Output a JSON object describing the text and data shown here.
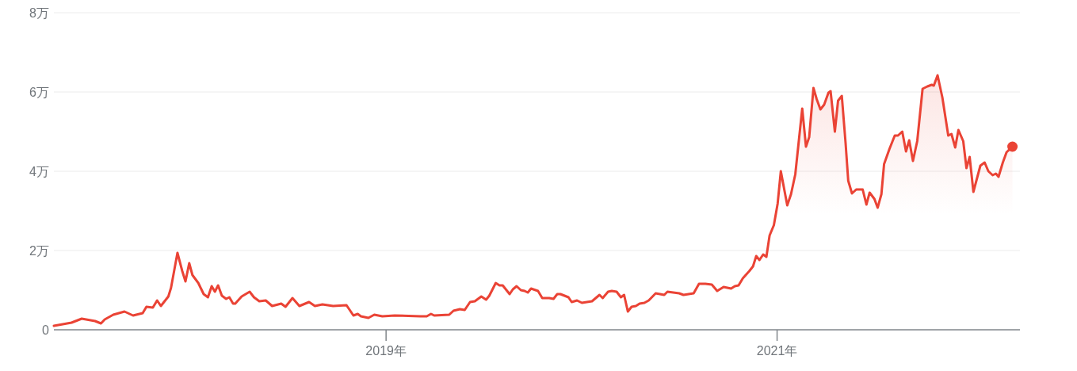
{
  "chart_data": {
    "type": "area",
    "color": "#ea4335",
    "grid": "y",
    "xlim": [
      "2017-04-20",
      "2022-03-31"
    ],
    "xticks": [
      {
        "value": "2019-01-01",
        "label": "2019年"
      },
      {
        "value": "2021-01-01",
        "label": "2021年"
      }
    ],
    "ylim": [
      0,
      8
    ],
    "yticks": [
      0,
      {
        "value": 2,
        "label": "2万"
      },
      {
        "value": 4,
        "label": "4万"
      },
      {
        "value": 6,
        "label": "6万"
      },
      {
        "value": 8,
        "label": "8万"
      }
    ],
    "x": [
      "2017-04-20",
      "2017-05-23",
      "2017-06-11",
      "2017-07-06",
      "2017-07-17",
      "2017-07-24",
      "2017-08-09",
      "2017-08-30",
      "2017-09-15",
      "2017-10-03",
      "2017-10-10",
      "2017-10-22",
      "2017-10-30",
      "2017-11-06",
      "2017-11-20",
      "2017-11-25",
      "2017-12-07",
      "2017-12-16",
      "2017-12-22",
      "2017-12-29",
      "2018-01-04",
      "2018-01-15",
      "2018-01-25",
      "2018-02-02",
      "2018-02-09",
      "2018-02-15",
      "2018-02-21",
      "2018-02-28",
      "2018-03-08",
      "2018-03-14",
      "2018-03-21",
      "2018-03-25",
      "2018-04-06",
      "2018-04-21",
      "2018-04-29",
      "2018-05-09",
      "2018-05-21",
      "2018-06-02",
      "2018-06-19",
      "2018-06-27",
      "2018-07-10",
      "2018-07-23",
      "2018-08-10",
      "2018-08-21",
      "2018-09-04",
      "2018-09-24",
      "2018-10-19",
      "2018-10-23",
      "2018-11-01",
      "2018-11-09",
      "2018-11-15",
      "2018-11-29",
      "2018-12-10",
      "2018-12-25",
      "2019-01-17",
      "2019-03-06",
      "2019-03-18",
      "2019-03-26",
      "2019-04-01",
      "2019-04-29",
      "2019-05-07",
      "2019-05-19",
      "2019-05-28",
      "2019-06-07",
      "2019-06-16",
      "2019-06-28",
      "2019-07-07",
      "2019-07-13",
      "2019-07-25",
      "2019-08-01",
      "2019-08-07",
      "2019-08-20",
      "2019-08-26",
      "2019-09-02",
      "2019-09-10",
      "2019-09-17",
      "2019-09-23",
      "2019-09-29",
      "2019-10-12",
      "2019-10-20",
      "2019-11-02",
      "2019-11-10",
      "2019-11-17",
      "2019-11-23",
      "2019-12-08",
      "2019-12-14",
      "2019-12-24",
      "2020-01-02",
      "2020-01-21",
      "2020-02-04",
      "2020-02-10",
      "2020-02-20",
      "2020-02-27",
      "2020-03-07",
      "2020-03-15",
      "2020-03-21",
      "2020-03-28",
      "2020-04-04",
      "2020-04-12",
      "2020-04-19",
      "2020-04-28",
      "2020-05-06",
      "2020-05-19",
      "2020-06-04",
      "2020-06-10",
      "2020-07-02",
      "2020-07-10",
      "2020-07-29",
      "2020-08-08",
      "2020-08-20",
      "2020-09-01",
      "2020-09-11",
      "2020-09-23",
      "2020-10-07",
      "2020-10-14",
      "2020-10-21",
      "2020-10-29",
      "2020-11-10",
      "2020-11-17",
      "2020-11-23",
      "2020-11-29",
      "2020-12-06",
      "2020-12-12",
      "2020-12-18",
      "2020-12-26",
      "2021-01-02",
      "2021-01-08",
      "2021-01-20",
      "2021-01-27",
      "2021-02-04",
      "2021-02-17",
      "2021-02-24",
      "2021-03-02",
      "2021-03-10",
      "2021-03-16",
      "2021-03-23",
      "2021-03-30",
      "2021-04-07",
      "2021-04-11",
      "2021-04-19",
      "2021-04-25",
      "2021-05-02",
      "2021-05-09",
      "2021-05-14",
      "2021-05-21",
      "2021-05-29",
      "2021-06-10",
      "2021-06-17",
      "2021-06-23",
      "2021-07-02",
      "2021-07-08",
      "2021-07-15",
      "2021-07-20",
      "2021-07-30",
      "2021-08-09",
      "2021-08-15",
      "2021-08-23",
      "2021-08-30",
      "2021-09-05",
      "2021-09-12",
      "2021-09-20",
      "2021-09-30",
      "2021-10-09",
      "2021-10-17",
      "2021-10-21",
      "2021-10-28",
      "2021-11-06",
      "2021-11-17",
      "2021-11-23",
      "2021-11-30",
      "2021-12-06",
      "2021-12-15",
      "2021-12-21",
      "2021-12-27",
      "2022-01-03",
      "2022-01-16",
      "2022-01-24",
      "2022-01-31",
      "2022-02-08",
      "2022-02-14",
      "2022-02-19",
      "2022-02-27",
      "2022-03-06",
      "2022-03-17"
    ],
    "values": [
      0.1,
      0.18,
      0.28,
      0.22,
      0.16,
      0.26,
      0.38,
      0.46,
      0.36,
      0.42,
      0.58,
      0.56,
      0.74,
      0.6,
      0.84,
      1.06,
      1.94,
      1.48,
      1.22,
      1.68,
      1.38,
      1.18,
      0.9,
      0.82,
      1.1,
      0.96,
      1.12,
      0.86,
      0.78,
      0.82,
      0.66,
      0.66,
      0.84,
      0.96,
      0.82,
      0.72,
      0.74,
      0.6,
      0.66,
      0.58,
      0.8,
      0.6,
      0.7,
      0.6,
      0.64,
      0.6,
      0.62,
      0.54,
      0.36,
      0.4,
      0.34,
      0.3,
      0.38,
      0.34,
      0.36,
      0.34,
      0.34,
      0.4,
      0.36,
      0.38,
      0.48,
      0.52,
      0.5,
      0.7,
      0.72,
      0.84,
      0.76,
      0.86,
      1.18,
      1.12,
      1.12,
      0.9,
      1.02,
      1.1,
      1.0,
      0.98,
      0.94,
      1.04,
      0.98,
      0.8,
      0.8,
      0.78,
      0.9,
      0.9,
      0.82,
      0.7,
      0.74,
      0.68,
      0.72,
      0.88,
      0.8,
      0.96,
      0.98,
      0.96,
      0.82,
      0.88,
      0.46,
      0.58,
      0.6,
      0.66,
      0.68,
      0.74,
      0.92,
      0.88,
      0.96,
      0.92,
      0.88,
      0.92,
      1.16,
      1.16,
      1.14,
      0.98,
      1.08,
      1.04,
      1.1,
      1.12,
      1.3,
      1.48,
      1.6,
      1.86,
      1.76,
      1.9,
      1.84,
      2.38,
      2.64,
      3.18,
      4.0,
      3.14,
      3.42,
      3.92,
      5.58,
      4.62,
      4.86,
      6.1,
      5.82,
      5.56,
      5.68,
      5.98,
      6.02,
      5.0,
      5.78,
      5.9,
      4.72,
      3.76,
      3.44,
      3.54,
      3.54,
      3.16,
      3.46,
      3.3,
      3.08,
      3.42,
      4.18,
      4.56,
      4.9,
      4.9,
      5.0,
      4.5,
      4.78,
      4.26,
      4.76,
      6.08,
      6.14,
      6.18,
      6.16,
      6.42,
      5.86,
      4.9,
      4.94,
      4.6,
      5.04,
      4.76,
      4.08,
      4.36,
      3.48,
      4.14,
      4.22,
      4.0,
      3.9,
      3.94,
      3.86,
      4.22,
      4.48,
      4.62
    ]
  }
}
